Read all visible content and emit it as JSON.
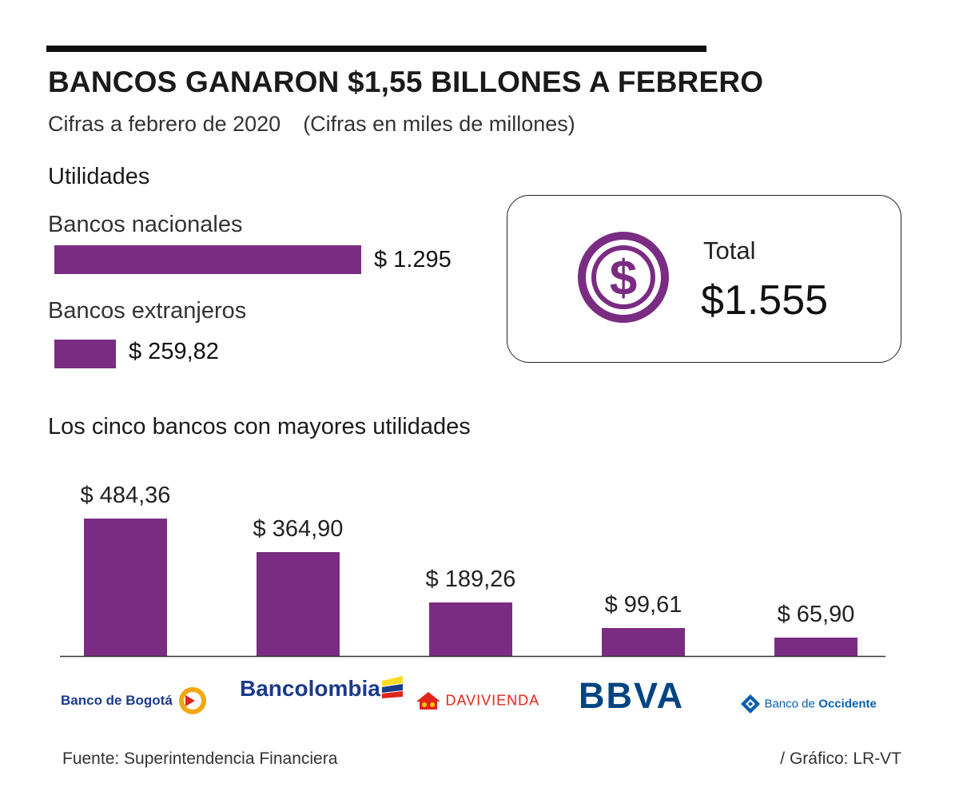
{
  "header": {
    "title": "BANCOS GANARON $1,55 BILLONES A FEBRERO",
    "subtitle_date": "Cifras a febrero de 2020",
    "subtitle_units": "(Cifras en miles de millones)"
  },
  "utilities": {
    "heading": "Utilidades",
    "nacionales_label": "Bancos nacionales",
    "nacionales_value_text": "$ 1.295",
    "extranjeros_label": "Bancos extranjeros",
    "extranjeros_value_text": "$ 259,82"
  },
  "total": {
    "label": "Total",
    "value": "$1.555",
    "icon": "dollar-coin-icon"
  },
  "ranking": {
    "heading": "Los cinco bancos con mayores utilidades"
  },
  "logos": {
    "bogota": "Banco de Bogotá",
    "bancolombia": "Bancolombia",
    "davivienda": "DAVIVIENDA",
    "bbva": "BBVA",
    "occidente_prefix": "Banco de",
    "occidente_name": "Occidente"
  },
  "footer": {
    "source": "Fuente: Superintendencia Financiera",
    "credit": "/ Gráfico: LR-VT"
  },
  "colors": {
    "bar": "#7a2c82",
    "bogota_blue": "#1b3a8c",
    "bbva_blue": "#004481",
    "occidente_blue": "#0a5eb0",
    "davivienda_red": "#e1251b"
  },
  "chart_data": [
    {
      "type": "bar",
      "orientation": "horizontal",
      "title": "Utilidades",
      "categories": [
        "Bancos nacionales",
        "Bancos extranjeros"
      ],
      "values": [
        1295,
        259.82
      ],
      "labels": [
        "$ 1.295",
        "$ 259,82"
      ],
      "total": 1555
    },
    {
      "type": "bar",
      "orientation": "vertical",
      "title": "Los cinco bancos con mayores utilidades",
      "categories": [
        "Banco de Bogotá",
        "Bancolombia",
        "Davivienda",
        "BBVA",
        "Banco de Occidente"
      ],
      "values": [
        484.36,
        364.9,
        189.26,
        99.61,
        65.9
      ],
      "labels": [
        "$ 484,36",
        "$ 364,90",
        "$ 189,26",
        "$ 99,61",
        "$ 65,90"
      ],
      "xlabel": "",
      "ylabel": ""
    }
  ]
}
